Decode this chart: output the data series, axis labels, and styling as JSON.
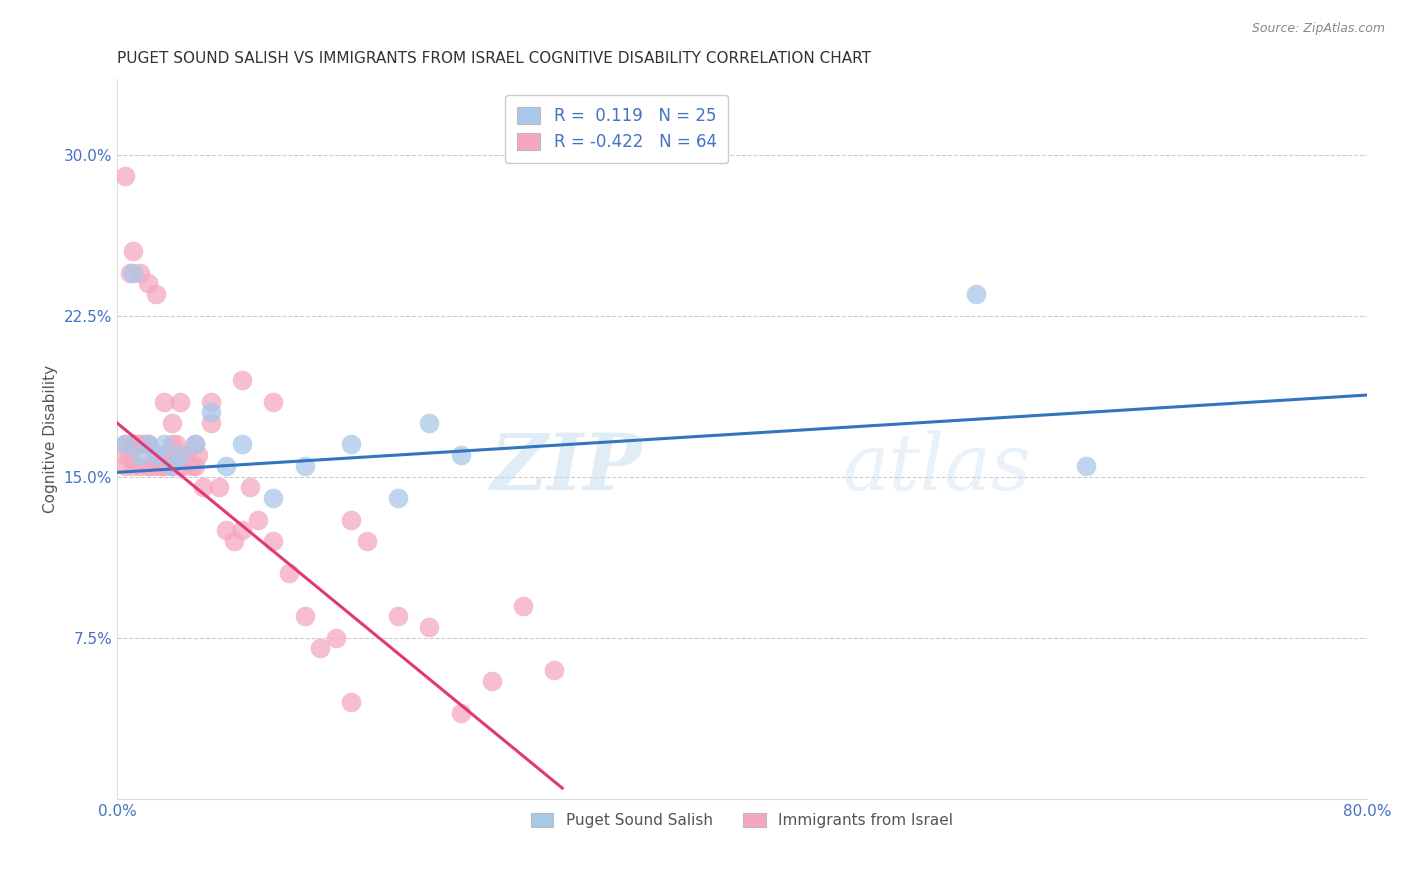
{
  "title": "PUGET SOUND SALISH VS IMMIGRANTS FROM ISRAEL COGNITIVE DISABILITY CORRELATION CHART",
  "source": "Source: ZipAtlas.com",
  "ylabel": "Cognitive Disability",
  "y_tick_labels": [
    "7.5%",
    "15.0%",
    "22.5%",
    "30.0%"
  ],
  "y_tick_values": [
    0.075,
    0.15,
    0.225,
    0.3
  ],
  "xlim": [
    0.0,
    0.8
  ],
  "ylim": [
    0.0,
    0.335
  ],
  "legend_label1": "Puget Sound Salish",
  "legend_label2": "Immigrants from Israel",
  "blue_color": "#a8c8e8",
  "pink_color": "#f4a8c0",
  "blue_line_color": "#3575c0",
  "pink_line_color": "#e03878",
  "blue_scatter_x": [
    0.005,
    0.01,
    0.015,
    0.02,
    0.025,
    0.03,
    0.035,
    0.04,
    0.05,
    0.06,
    0.07,
    0.08,
    0.1,
    0.12,
    0.15,
    0.18,
    0.2,
    0.22,
    0.55,
    0.62
  ],
  "blue_scatter_y": [
    0.165,
    0.245,
    0.16,
    0.165,
    0.16,
    0.165,
    0.155,
    0.16,
    0.165,
    0.18,
    0.155,
    0.165,
    0.14,
    0.155,
    0.165,
    0.14,
    0.175,
    0.16,
    0.235,
    0.155
  ],
  "pink_scatter_x": [
    0.005,
    0.005,
    0.005,
    0.008,
    0.01,
    0.01,
    0.012,
    0.015,
    0.015,
    0.018,
    0.02,
    0.02,
    0.022,
    0.025,
    0.025,
    0.028,
    0.03,
    0.03,
    0.032,
    0.035,
    0.035,
    0.038,
    0.04,
    0.04,
    0.042,
    0.045,
    0.048,
    0.05,
    0.052,
    0.055,
    0.06,
    0.065,
    0.07,
    0.075,
    0.08,
    0.085,
    0.09,
    0.1,
    0.11,
    0.12,
    0.13,
    0.14,
    0.15,
    0.16,
    0.18,
    0.2,
    0.22,
    0.24,
    0.26,
    0.28,
    0.005,
    0.008,
    0.01,
    0.015,
    0.02,
    0.025,
    0.03,
    0.035,
    0.04,
    0.05,
    0.06,
    0.08,
    0.1,
    0.15
  ],
  "pink_scatter_y": [
    0.165,
    0.155,
    0.16,
    0.16,
    0.165,
    0.155,
    0.165,
    0.165,
    0.155,
    0.165,
    0.165,
    0.155,
    0.155,
    0.16,
    0.155,
    0.155,
    0.16,
    0.155,
    0.16,
    0.155,
    0.165,
    0.165,
    0.16,
    0.155,
    0.155,
    0.16,
    0.155,
    0.155,
    0.16,
    0.145,
    0.175,
    0.145,
    0.125,
    0.12,
    0.125,
    0.145,
    0.13,
    0.12,
    0.105,
    0.085,
    0.07,
    0.075,
    0.13,
    0.12,
    0.085,
    0.08,
    0.04,
    0.055,
    0.09,
    0.06,
    0.29,
    0.245,
    0.255,
    0.245,
    0.24,
    0.235,
    0.185,
    0.175,
    0.185,
    0.165,
    0.185,
    0.195,
    0.185,
    0.045
  ],
  "blue_trend_x": [
    0.0,
    0.8
  ],
  "blue_trend_y": [
    0.152,
    0.188
  ],
  "pink_trend_x": [
    0.0,
    0.285
  ],
  "pink_trend_y": [
    0.175,
    0.005
  ],
  "background_color": "#ffffff",
  "grid_color": "#cccccc",
  "title_fontsize": 11,
  "axis_label_fontsize": 11,
  "tick_fontsize": 11
}
